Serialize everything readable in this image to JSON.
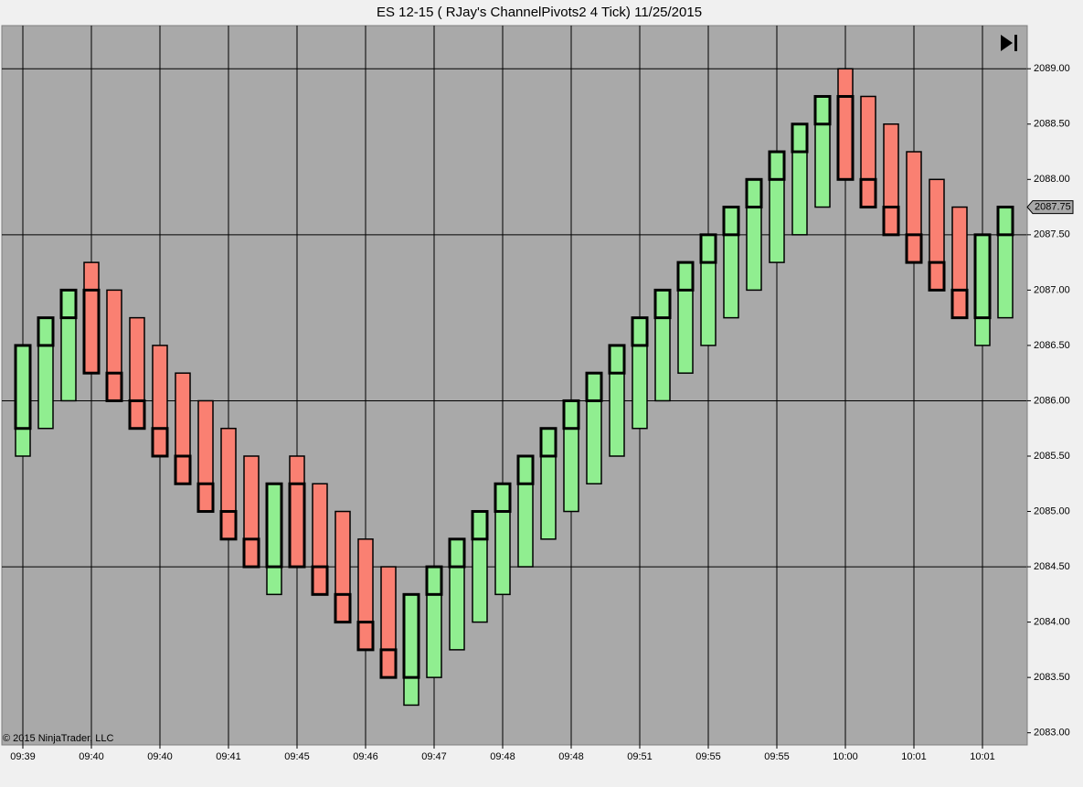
{
  "chart_data": {
    "type": "candlestick",
    "title": "ES 12-15 ( RJay's ChannelPivots2  4 Tick)  11/25/2015",
    "copyright": "© 2015 NinjaTrader, LLC",
    "categories": [
      "09:39",
      null,
      null,
      "09:40",
      null,
      null,
      "09:40",
      null,
      null,
      "09:41",
      null,
      null,
      "09:45",
      null,
      null,
      "09:46",
      null,
      null,
      "09:47",
      null,
      null,
      "09:48",
      null,
      null,
      "09:48",
      null,
      null,
      "09:51",
      null,
      null,
      "09:55",
      null,
      null,
      "09:55",
      null,
      null,
      "10:00",
      null,
      null,
      "10:01",
      null,
      null,
      "10:01",
      null
    ],
    "open": [
      2085.75,
      2086.5,
      2086.75,
      2087,
      2086.25,
      2086,
      2085.75,
      2085.5,
      2085.25,
      2085,
      2084.75,
      2084.5,
      2085.25,
      2084.5,
      2084.25,
      2084,
      2083.75,
      2083.5,
      2084.25,
      2084.5,
      2084.75,
      2085,
      2085.25,
      2085.5,
      2085.75,
      2086,
      2086.25,
      2086.5,
      2086.75,
      2087,
      2087.25,
      2087.5,
      2087.75,
      2088,
      2088.25,
      2088.5,
      2088.75,
      2088,
      2087.75,
      2087.5,
      2087.25,
      2087,
      2086.75,
      2087.5
    ],
    "high": [
      2086.5,
      2086.75,
      2087,
      2087.25,
      2087,
      2086.75,
      2086.5,
      2086.25,
      2086,
      2085.75,
      2085.5,
      2085.25,
      2085.5,
      2085.25,
      2085,
      2084.75,
      2084.5,
      2084.25,
      2084.5,
      2084.75,
      2085,
      2085.25,
      2085.5,
      2085.75,
      2086,
      2086.25,
      2086.5,
      2086.75,
      2087,
      2087.25,
      2087.5,
      2087.75,
      2088,
      2088.25,
      2088.5,
      2088.75,
      2089,
      2088.75,
      2088.5,
      2088.25,
      2088,
      2087.75,
      2087.5,
      2087.75
    ],
    "low": [
      2085.5,
      2085.75,
      2086,
      2086.25,
      2086,
      2085.75,
      2085.5,
      2085.25,
      2085,
      2084.75,
      2084.5,
      2084.25,
      2084.5,
      2084.25,
      2084,
      2083.75,
      2083.5,
      2083.25,
      2083.5,
      2083.75,
      2084,
      2084.25,
      2084.5,
      2084.75,
      2085,
      2085.25,
      2085.5,
      2085.75,
      2086,
      2086.25,
      2086.5,
      2086.75,
      2087,
      2087.25,
      2087.5,
      2087.75,
      2088,
      2087.75,
      2087.5,
      2087.25,
      2087,
      2086.75,
      2086.5,
      2086.75
    ],
    "close": [
      2086.5,
      2086.75,
      2087,
      2086.25,
      2086,
      2085.75,
      2085.5,
      2085.25,
      2085,
      2084.75,
      2084.5,
      2085.25,
      2084.5,
      2084.25,
      2084,
      2083.75,
      2083.5,
      2084.25,
      2084.5,
      2084.75,
      2085,
      2085.25,
      2085.5,
      2085.75,
      2086,
      2086.25,
      2086.5,
      2086.75,
      2087,
      2087.25,
      2087.5,
      2087.75,
      2088,
      2088.25,
      2088.5,
      2088.75,
      2088,
      2087.75,
      2087.5,
      2087.25,
      2087,
      2086.75,
      2087.5,
      2087.75
    ],
    "up_color": "#90ee90",
    "down_color": "#fa8072",
    "ylim": [
      2082.89,
      2089.39
    ],
    "yticks": [
      {
        "value": 2083,
        "label": "2083.00"
      },
      {
        "value": 2083.5,
        "label": "2083.50"
      },
      {
        "value": 2084,
        "label": "2084.00"
      },
      {
        "value": 2084.5,
        "label": "2084.50"
      },
      {
        "value": 2085,
        "label": "2085.00"
      },
      {
        "value": 2085.5,
        "label": "2085.50"
      },
      {
        "value": 2086,
        "label": "2086.00"
      },
      {
        "value": 2086.5,
        "label": "2086.50"
      },
      {
        "value": 2087,
        "label": "2087.00"
      },
      {
        "value": 2087.5,
        "label": "2087.50"
      },
      {
        "value": 2088,
        "label": "2088.00"
      },
      {
        "value": 2088.5,
        "label": "2088.50"
      },
      {
        "value": 2089,
        "label": "2089.00"
      }
    ],
    "y_gridlines": [
      2084.5,
      2086,
      2087.5,
      2089
    ],
    "last_price": {
      "value": 2087.75,
      "label": "2087.75"
    }
  }
}
